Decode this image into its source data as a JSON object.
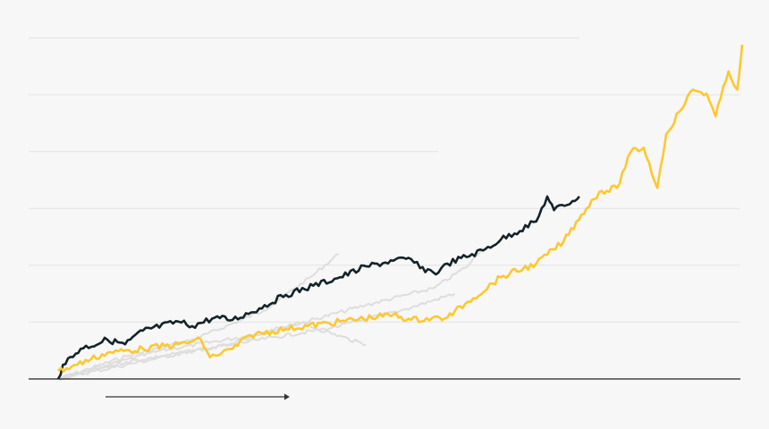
{
  "chart_data": {
    "type": "line",
    "title": "",
    "xlabel": "",
    "ylabel": "",
    "xlim": [
      0,
      100
    ],
    "ylim": [
      0,
      6
    ],
    "grid": true,
    "gridlines_y": [
      1,
      2,
      3,
      4,
      5,
      6
    ],
    "legend": "none",
    "colors": {
      "background": "#f7f7f7",
      "grid": "#e4e4e4",
      "axis": "#222222",
      "highlight": "#fdc82f",
      "primary": "#13232a",
      "context": "#dddddd"
    },
    "series": [
      {
        "role": "context",
        "color": "#dddddd",
        "x": [
          0,
          10,
          20,
          30,
          37,
          41
        ],
        "y": [
          0,
          0.4,
          0.7,
          1.2,
          1.8,
          2.2
        ]
      },
      {
        "role": "context",
        "color": "#dddddd",
        "x": [
          0,
          15,
          30,
          45,
          55,
          60,
          62
        ],
        "y": [
          0,
          0.5,
          0.8,
          1.3,
          1.6,
          2.0,
          2.3
        ]
      },
      {
        "role": "context",
        "color": "#dddddd",
        "x": [
          0,
          20,
          40,
          50,
          58
        ],
        "y": [
          0,
          0.5,
          0.9,
          1.2,
          1.5
        ]
      },
      {
        "role": "context",
        "color": "#dddddd",
        "x": [
          0,
          10,
          25,
          35,
          45
        ],
        "y": [
          0,
          0.3,
          0.6,
          1.0,
          0.6
        ]
      },
      {
        "role": "primary",
        "color": "#13232a",
        "x": [
          0,
          0.7,
          3.3,
          7.2,
          9.8,
          12.4,
          17.6,
          19.6,
          22.9,
          25.5,
          29.4,
          33.3,
          37.3,
          41.2,
          45.1,
          49.0,
          51.6,
          52.9,
          55.6,
          56.9,
          62.1,
          64.7,
          69.9,
          71.5,
          72.5,
          75.2,
          76.2
        ],
        "y": [
          0,
          0.25,
          0.53,
          0.69,
          0.61,
          0.85,
          1.01,
          0.93,
          1.08,
          1.04,
          1.24,
          1.48,
          1.64,
          1.79,
          1.98,
          2.08,
          2.11,
          1.95,
          1.87,
          2.03,
          2.26,
          2.45,
          2.77,
          3.21,
          2.97,
          3.13,
          3.21
        ]
      },
      {
        "role": "highlight",
        "color": "#fdc82f",
        "x": [
          0,
          2.0,
          7.2,
          12.4,
          17.6,
          20.9,
          22.2,
          25.5,
          28.1,
          33.3,
          41.2,
          49.0,
          51.6,
          56.9,
          59.5,
          64.7,
          69.9,
          73.9,
          76.5,
          79.1,
          81.7,
          83.7,
          85.6,
          87.6,
          88.9,
          90.8,
          92.8,
          94.8,
          96.1,
          98.0,
          99.3,
          100
        ],
        "y": [
          0.14,
          0.22,
          0.46,
          0.53,
          0.61,
          0.69,
          0.38,
          0.53,
          0.77,
          0.88,
          1.01,
          1.13,
          1.04,
          1.08,
          1.32,
          1.79,
          2.03,
          2.42,
          2.89,
          3.29,
          3.36,
          3.99,
          4.07,
          3.36,
          4.31,
          4.7,
          5.09,
          5.02,
          4.62,
          5.41,
          5.09,
          5.88
        ]
      }
    ]
  }
}
